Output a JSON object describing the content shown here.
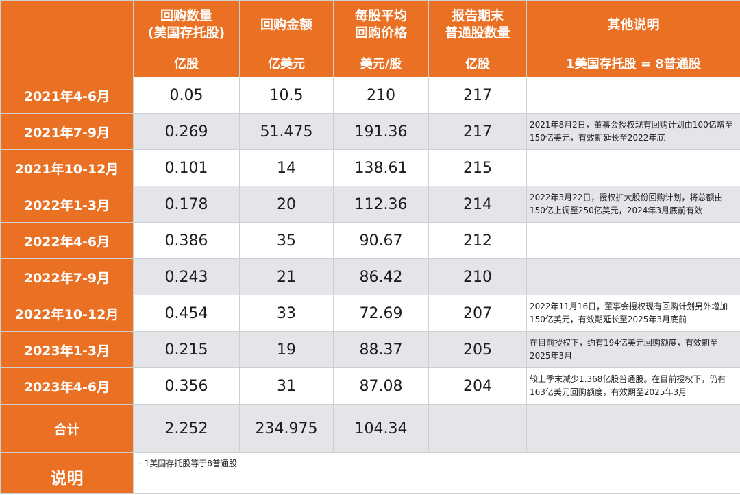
{
  "header": {
    "columns": [
      {
        "line1": "回购数量",
        "line2": "(美国存托股)"
      },
      {
        "line1": "回购金额",
        "line2": ""
      },
      {
        "line1": "每股平均",
        "line2": "回购价格"
      },
      {
        "line1": "报告期末",
        "line2": "普通股数量"
      },
      {
        "line1": "其他说明",
        "line2": ""
      }
    ],
    "units": [
      "亿股",
      "亿美元",
      "美元/股",
      "亿股",
      "1美国存托股 = 8普通股"
    ]
  },
  "rows": [
    {
      "period": "2021年4-6月",
      "qty": "0.05",
      "amount": "10.5",
      "price": "210",
      "shares": "217",
      "note": ""
    },
    {
      "period": "2021年7-9月",
      "qty": "0.269",
      "amount": "51.475",
      "price": "191.36",
      "shares": "217",
      "note": "2021年8月2日，董事会授权现有回购计划由100亿增至150亿美元，有效期延长至2022年底"
    },
    {
      "period": "2021年10-12月",
      "qty": "0.101",
      "amount": "14",
      "price": "138.61",
      "shares": "215",
      "note": ""
    },
    {
      "period": "2022年1-3月",
      "qty": "0.178",
      "amount": "20",
      "price": "112.36",
      "shares": "214",
      "note": "2022年3月22日，授权扩大股份回购计划，将总额由150亿上调至250亿美元，2024年3月底前有效"
    },
    {
      "period": "2022年4-6月",
      "qty": "0.386",
      "amount": "35",
      "price": "90.67",
      "shares": "212",
      "note": ""
    },
    {
      "period": "2022年7-9月",
      "qty": "0.243",
      "amount": "21",
      "price": "86.42",
      "shares": "210",
      "note": ""
    },
    {
      "period": "2022年10-12月",
      "qty": "0.454",
      "amount": "33",
      "price": "72.69",
      "shares": "207",
      "note": "2022年11月16日，董事会授权现有回购计划另外增加150亿美元，有效期延长至2025年3月底前"
    },
    {
      "period": "2023年1-3月",
      "qty": "0.215",
      "amount": "19",
      "price": "88.37",
      "shares": "205",
      "note": "在目前授权下，约有194亿美元回购额度，有效期至2025年3月"
    },
    {
      "period": "2023年4-6月",
      "qty": "0.356",
      "amount": "31",
      "price": "87.08",
      "shares": "204",
      "note": "较上季末减少1.368亿股普通股。在目前授权下，仍有163亿美元回购额度，有效期至2025年3月"
    }
  ],
  "total": {
    "label": "合计",
    "qty": "2.252",
    "amount": "234.975",
    "price": "104.34",
    "shares": "",
    "note": ""
  },
  "explanation": {
    "label": "说明",
    "text": "· 1美国存托股等于8普通股"
  }
}
